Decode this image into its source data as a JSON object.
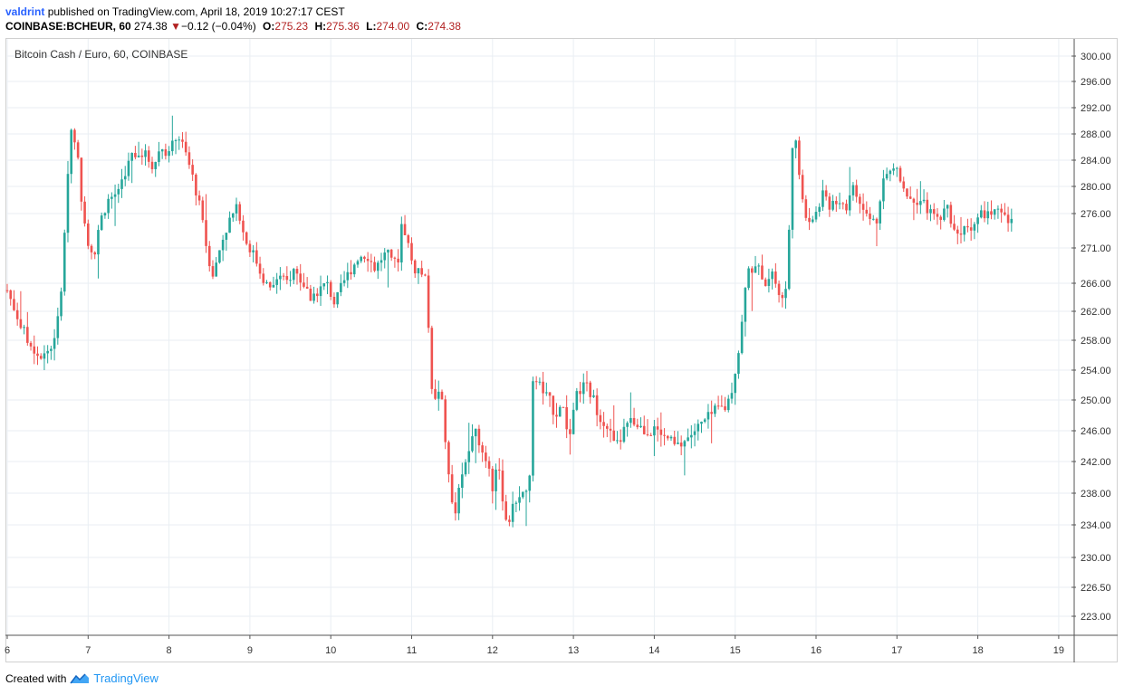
{
  "header": {
    "user": "valdrint",
    "published_text": "published on TradingView.com, April 18, 2019 10:27:17 CEST"
  },
  "ticker": {
    "symbol": "COINBASE:BCHEUR, 60",
    "last": "274.38",
    "change_arrow": "▼",
    "change": "−0.12 (−0.04%)",
    "o_label": "O:",
    "o": "275.23",
    "h_label": "H:",
    "h": "275.36",
    "l_label": "L:",
    "l": "274.00",
    "c_label": "C:",
    "c": "274.38"
  },
  "chart_title": "Bitcoin Cash / Euro, 60, COINBASE",
  "footer": {
    "created_with": "Created with",
    "brand": "TradingView"
  },
  "colors": {
    "up": "#26a69a",
    "down": "#ef5350",
    "grid": "#e9eef3",
    "axis_text": "#333333"
  },
  "chart_data": {
    "type": "candlestick",
    "title": "Bitcoin Cash / Euro, 60, COINBASE",
    "x_ticks": [
      "6",
      "7",
      "8",
      "9",
      "10",
      "11",
      "12",
      "13",
      "14",
      "15",
      "16",
      "17",
      "18",
      "19"
    ],
    "y_ticks": [
      "300.00",
      "296.00",
      "292.00",
      "288.00",
      "284.00",
      "280.00",
      "276.00",
      "271.00",
      "266.00",
      "262.00",
      "258.00",
      "254.00",
      "250.00",
      "246.00",
      "242.00",
      "238.00",
      "234.00",
      "230.00",
      "226.50",
      "223.00"
    ],
    "ylim": [
      220,
      302
    ],
    "xlim": [
      6.0,
      19.2
    ],
    "grid": true,
    "series": [
      {
        "keypoints": [
          [
            6.0,
            265
          ],
          [
            6.1,
            262
          ],
          [
            6.25,
            258
          ],
          [
            6.4,
            256
          ],
          [
            6.55,
            257
          ],
          [
            6.65,
            262
          ],
          [
            6.72,
            275
          ],
          [
            6.78,
            289
          ],
          [
            6.85,
            287
          ],
          [
            6.92,
            278
          ],
          [
            7.0,
            272
          ],
          [
            7.08,
            270
          ],
          [
            7.15,
            275
          ],
          [
            7.25,
            278
          ],
          [
            7.35,
            279
          ],
          [
            7.45,
            282
          ],
          [
            7.55,
            285
          ],
          [
            7.7,
            285
          ],
          [
            7.8,
            283
          ],
          [
            7.9,
            286
          ],
          [
            8.0,
            285
          ],
          [
            8.1,
            288
          ],
          [
            8.18,
            286
          ],
          [
            8.28,
            282
          ],
          [
            8.38,
            277
          ],
          [
            8.48,
            270
          ],
          [
            8.55,
            267
          ],
          [
            8.65,
            272
          ],
          [
            8.75,
            275
          ],
          [
            8.85,
            277
          ],
          [
            8.95,
            272
          ],
          [
            9.05,
            270
          ],
          [
            9.15,
            267
          ],
          [
            9.25,
            265
          ],
          [
            9.35,
            267
          ],
          [
            9.45,
            266
          ],
          [
            9.55,
            268
          ],
          [
            9.65,
            266
          ],
          [
            9.75,
            264
          ],
          [
            9.85,
            265
          ],
          [
            9.95,
            266
          ],
          [
            10.05,
            263
          ],
          [
            10.15,
            266
          ],
          [
            10.25,
            268
          ],
          [
            10.35,
            270
          ],
          [
            10.45,
            270
          ],
          [
            10.55,
            268
          ],
          [
            10.65,
            270
          ],
          [
            10.75,
            270
          ],
          [
            10.82,
            268
          ],
          [
            10.88,
            275
          ],
          [
            10.95,
            272
          ],
          [
            11.02,
            268
          ],
          [
            11.1,
            268
          ],
          [
            11.18,
            266
          ],
          [
            11.22,
            258
          ],
          [
            11.27,
            248
          ],
          [
            11.32,
            252
          ],
          [
            11.37,
            250
          ],
          [
            11.42,
            244
          ],
          [
            11.47,
            240
          ],
          [
            11.52,
            234
          ],
          [
            11.58,
            238
          ],
          [
            11.65,
            241
          ],
          [
            11.72,
            244
          ],
          [
            11.8,
            246
          ],
          [
            11.88,
            243
          ],
          [
            11.95,
            242
          ],
          [
            12.0,
            239
          ],
          [
            12.05,
            242
          ],
          [
            12.12,
            238
          ],
          [
            12.18,
            234
          ],
          [
            12.25,
            236
          ],
          [
            12.32,
            238
          ],
          [
            12.4,
            238
          ],
          [
            12.45,
            238
          ],
          [
            12.5,
            252
          ],
          [
            12.55,
            253
          ],
          [
            12.62,
            251
          ],
          [
            12.7,
            250
          ],
          [
            12.78,
            248
          ],
          [
            12.85,
            250
          ],
          [
            12.95,
            245
          ],
          [
            13.05,
            251
          ],
          [
            13.15,
            252
          ],
          [
            13.25,
            250
          ],
          [
            13.32,
            248
          ],
          [
            13.4,
            247
          ],
          [
            13.48,
            245
          ],
          [
            13.55,
            244
          ],
          [
            13.62,
            246
          ],
          [
            13.7,
            247
          ],
          [
            13.78,
            247
          ],
          [
            13.88,
            246
          ],
          [
            13.95,
            246
          ],
          [
            14.02,
            246
          ],
          [
            14.1,
            245
          ],
          [
            14.18,
            245
          ],
          [
            14.25,
            244
          ],
          [
            14.32,
            244
          ],
          [
            14.4,
            245
          ],
          [
            14.5,
            246
          ],
          [
            14.6,
            247
          ],
          [
            14.7,
            248
          ],
          [
            14.8,
            249
          ],
          [
            14.88,
            249
          ],
          [
            14.95,
            251
          ],
          [
            15.05,
            257
          ],
          [
            15.1,
            262
          ],
          [
            15.15,
            268
          ],
          [
            15.22,
            268
          ],
          [
            15.3,
            268
          ],
          [
            15.38,
            266
          ],
          [
            15.45,
            268
          ],
          [
            15.55,
            264
          ],
          [
            15.62,
            264
          ],
          [
            15.68,
            276
          ],
          [
            15.72,
            291
          ],
          [
            15.78,
            282
          ],
          [
            15.83,
            278
          ],
          [
            15.9,
            275
          ],
          [
            16.0,
            276
          ],
          [
            16.08,
            279
          ],
          [
            16.15,
            277
          ],
          [
            16.22,
            278
          ],
          [
            16.3,
            278
          ],
          [
            16.38,
            277
          ],
          [
            16.45,
            280
          ],
          [
            16.52,
            278
          ],
          [
            16.6,
            276
          ],
          [
            16.68,
            275
          ],
          [
            16.75,
            275
          ],
          [
            16.82,
            281
          ],
          [
            16.9,
            282
          ],
          [
            17.0,
            283
          ],
          [
            17.05,
            281
          ],
          [
            17.12,
            279
          ],
          [
            17.2,
            278
          ],
          [
            17.28,
            278
          ],
          [
            17.36,
            277
          ],
          [
            17.42,
            276
          ],
          [
            17.48,
            275
          ],
          [
            17.55,
            276
          ],
          [
            17.62,
            277
          ],
          [
            17.7,
            274
          ],
          [
            17.75,
            273
          ],
          [
            17.82,
            274
          ],
          [
            17.9,
            274
          ],
          [
            17.98,
            275
          ],
          [
            18.05,
            276
          ],
          [
            18.12,
            276
          ],
          [
            18.2,
            276
          ],
          [
            18.28,
            276
          ],
          [
            18.35,
            275
          ],
          [
            18.44,
            274.38
          ]
        ]
      }
    ],
    "last_close": 274.38
  }
}
